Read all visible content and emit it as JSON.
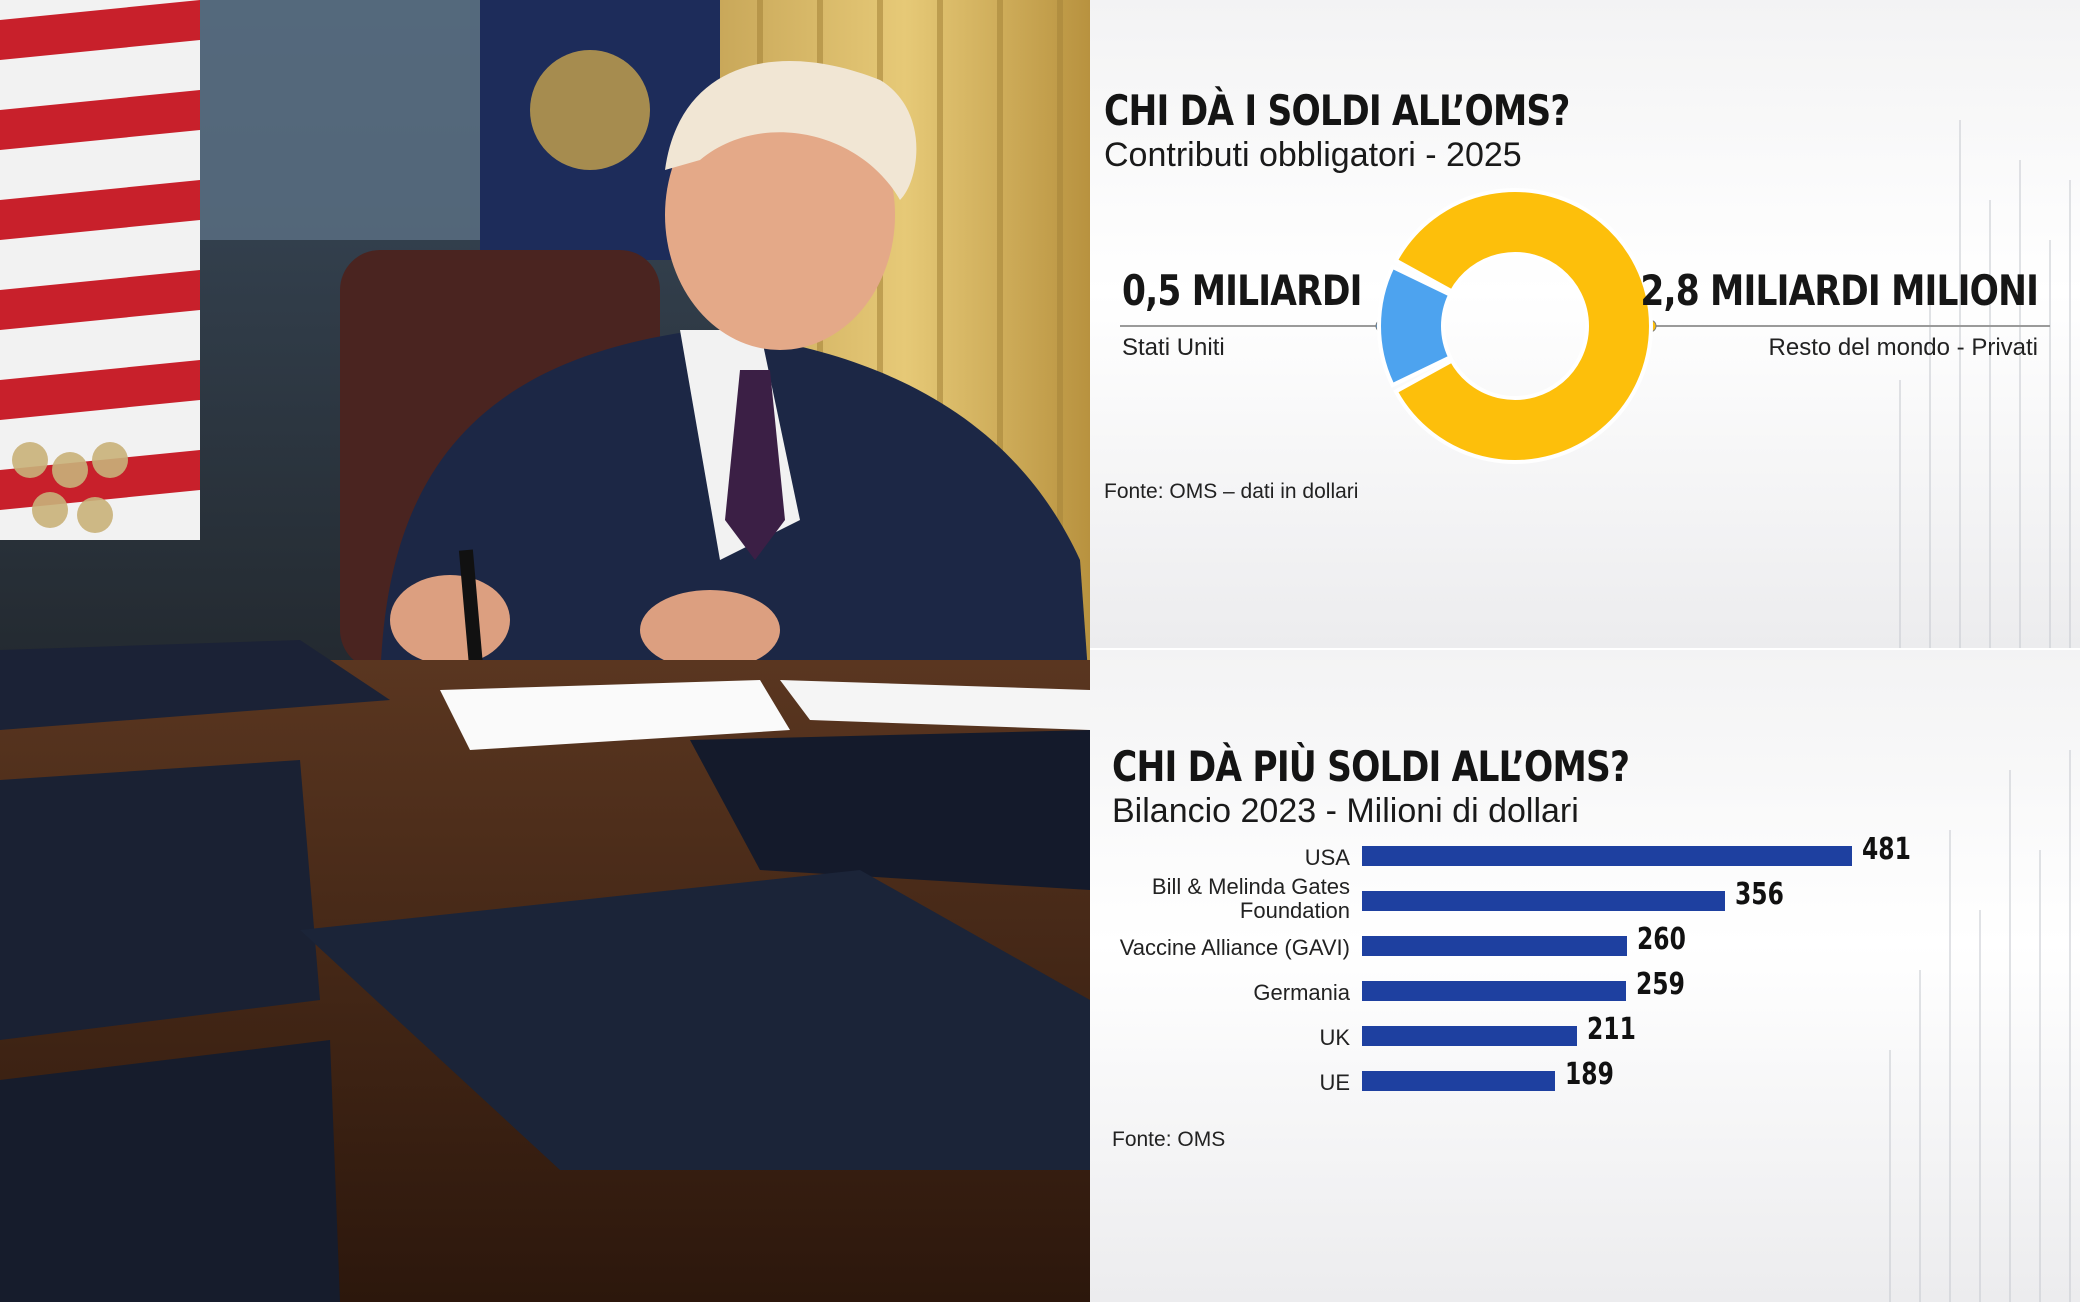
{
  "photo": {
    "description_name": "oval-office-signing-photo"
  },
  "donut_panel": {
    "title": "CHI DÀ I SOLDI ALL’OMS?",
    "subtitle": "Contributi obbligatori - 2025",
    "left_value": "0,5 MILIARDI",
    "left_label": "Stati Uniti",
    "right_value": "2,8 MILIARDI MILIONI",
    "right_label": "Resto del mondo - Privati",
    "source": "Fonte: OMS – dati in dollari",
    "colors": {
      "usa": "#4da3ef",
      "rest": "#fdbf0b"
    }
  },
  "bar_panel": {
    "title": "CHI DÀ PIÙ SOLDI ALL’OMS?",
    "subtitle": "Bilancio 2023 - Milioni di dollari",
    "source": "Fonte: OMS",
    "bar_color": "#1e40a0"
  },
  "chart_data": [
    {
      "type": "pie",
      "title": "CHI DÀ I SOLDI ALL’OMS?",
      "subtitle": "Contributi obbligatori - 2025",
      "categories": [
        "Stati Uniti",
        "Resto del mondo - Privati"
      ],
      "values": [
        0.5,
        2.8
      ],
      "value_labels": [
        "0,5 MILIARDI",
        "2,8 MILIARDI MILIONI"
      ],
      "donut": true
    },
    {
      "type": "bar",
      "orientation": "horizontal",
      "title": "CHI DÀ PIÙ SOLDI ALL’OMS?",
      "subtitle": "Bilancio 2023 - Milioni di dollari",
      "categories": [
        [
          "USA"
        ],
        [
          "Bill & Melinda Gates",
          "Foundation"
        ],
        [
          "Vaccine Alliance (GAVI)"
        ],
        [
          "Germania"
        ],
        [
          "UK"
        ],
        [
          "UE"
        ]
      ],
      "values": [
        481,
        356,
        260,
        259,
        211,
        189
      ],
      "xlim": [
        0,
        481
      ],
      "grid": false
    }
  ]
}
